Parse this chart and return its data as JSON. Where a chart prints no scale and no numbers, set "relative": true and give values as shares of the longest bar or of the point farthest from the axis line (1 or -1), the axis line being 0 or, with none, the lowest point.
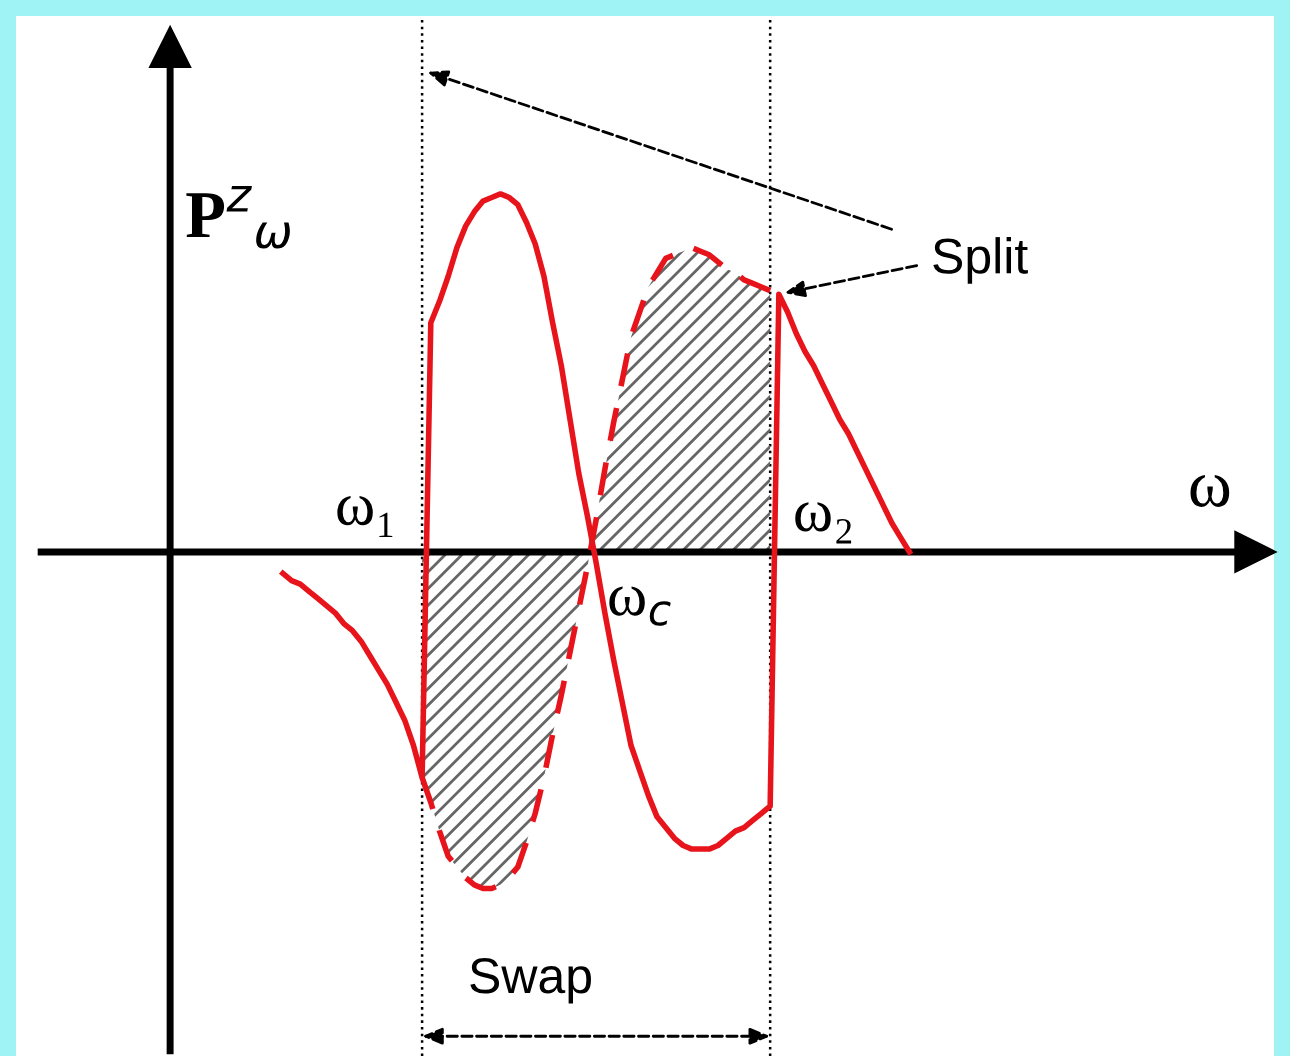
{
  "chart_data": {
    "type": "line",
    "relative": true,
    "xlabel": "ω",
    "ylabel": "P$^{z}$$_{ω}$",
    "marker": "none",
    "categories": [
      null,
      null,
      null,
      null,
      null,
      null,
      null,
      null,
      null,
      null,
      null,
      null,
      null,
      null,
      null,
      null,
      null,
      null,
      null,
      null,
      null,
      null,
      null,
      null,
      null,
      null,
      null,
      null,
      null,
      null,
      null,
      null,
      null,
      null,
      null,
      null,
      null,
      null,
      null,
      null,
      null,
      null,
      null,
      null,
      null,
      null,
      null,
      null,
      null,
      null,
      null,
      null,
      null,
      null,
      null,
      null,
      null,
      null,
      null,
      null,
      null,
      null,
      null,
      null,
      null,
      null,
      null,
      null,
      null,
      null,
      null,
      null,
      null
    ],
    "series": [
      {
        "color": "#e8141c",
        "line_style": "solid",
        "values": [
          -0.06,
          -0.08,
          -0.09,
          -0.11,
          -0.13,
          -0.15,
          -0.17,
          -0.2,
          -0.22,
          -0.25,
          -0.29,
          -0.33,
          -0.37,
          -0.42,
          -0.47,
          -0.54,
          -0.63,
          0.64,
          0.7,
          0.77,
          0.85,
          0.91,
          0.95,
          0.98,
          0.99,
          1.0,
          0.99,
          0.97,
          0.92,
          0.86,
          0.77,
          0.64,
          0.52,
          0.37,
          0.22,
          0.1,
          -0.03,
          -0.17,
          -0.3,
          -0.42,
          -0.54,
          -0.61,
          -0.68,
          -0.74,
          -0.77,
          -0.8,
          -0.82,
          -0.83,
          -0.83,
          -0.83,
          -0.82,
          -0.8,
          -0.78,
          -0.77,
          -0.75,
          -0.73,
          -0.71,
          0.72,
          0.67,
          0.61,
          0.56,
          0.52,
          0.47,
          0.42,
          0.37,
          0.33,
          0.28,
          0.23,
          0.18,
          0.13,
          0.08,
          0.04,
          0.0
        ]
      },
      {
        "type": "area",
        "color": "#e8141c",
        "line_style": "dashed",
        "values": [
          null,
          null,
          null,
          null,
          null,
          null,
          null,
          null,
          null,
          null,
          null,
          null,
          null,
          null,
          null,
          null,
          -0.63,
          -0.7,
          -0.78,
          -0.85,
          -0.88,
          -0.91,
          -0.93,
          -0.94,
          -0.94,
          -0.93,
          -0.91,
          -0.88,
          -0.81,
          -0.73,
          -0.63,
          -0.51,
          -0.4,
          -0.28,
          -0.16,
          -0.04,
          0.09,
          0.23,
          0.36,
          0.48,
          0.6,
          0.67,
          0.74,
          0.78,
          0.82,
          0.83,
          0.84,
          0.85,
          0.84,
          0.83,
          0.81,
          0.79,
          0.78,
          0.76,
          0.75,
          0.74,
          0.73,
          null,
          null,
          null,
          null,
          null,
          null,
          null,
          null,
          null,
          null,
          null,
          null,
          null,
          null,
          null,
          null
        ]
      }
    ],
    "annotations": [
      "ω₁",
      "ω$_{c}$",
      "ω₂",
      "Split",
      "Swap"
    ]
  }
}
